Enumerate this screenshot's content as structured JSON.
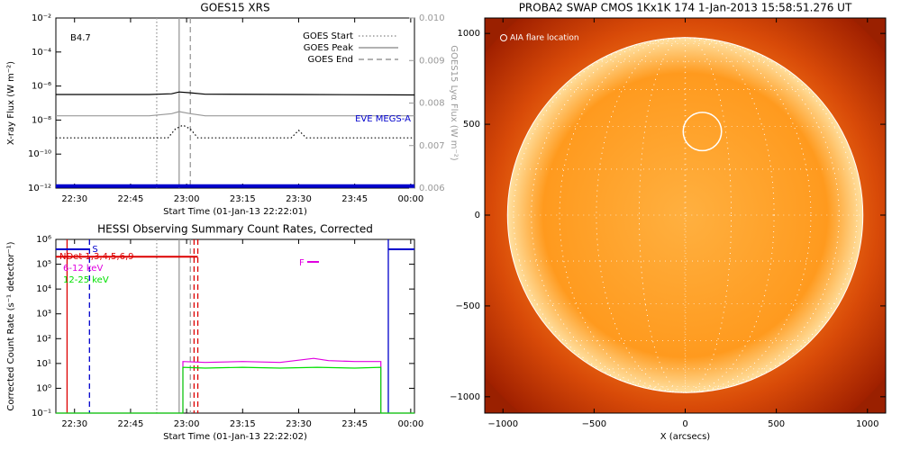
{
  "chart_data": [
    {
      "type": "line",
      "title": "GOES15 XRS",
      "xlabel": "Start Time (01-Jan-13 22:22:01)",
      "ylabel": "X-ray Flux (W m⁻²)",
      "y2label": "GOES15 Lyα Flux (W m⁻²)",
      "ylog": true,
      "xlim": [
        "22:25",
        "00:01"
      ],
      "ylim": [
        1e-12,
        0.01
      ],
      "y2lim": [
        0.006,
        0.01
      ],
      "xticks": [
        "22:30",
        "22:45",
        "23:00",
        "23:15",
        "23:30",
        "23:45",
        "00:00"
      ],
      "yticks": [
        {
          "value": 1e-12,
          "label": "10⁻¹²"
        },
        {
          "value": 1e-10,
          "label": "10⁻¹⁰"
        },
        {
          "value": 1e-08,
          "label": "10⁻⁸"
        },
        {
          "value": 1e-06,
          "label": "10⁻⁶"
        },
        {
          "value": 0.0001,
          "label": "10⁻⁴"
        },
        {
          "value": 0.01,
          "label": "10⁻²"
        }
      ],
      "y2ticks": [
        {
          "value": 0.006,
          "label": "0.006"
        },
        {
          "value": 0.007,
          "label": "0.007"
        },
        {
          "value": 0.008,
          "label": "0.008"
        },
        {
          "value": 0.009,
          "label": "0.009"
        },
        {
          "value": 0.01,
          "label": "0.010"
        }
      ],
      "annotations": [
        "B4.7"
      ],
      "series": [
        {
          "color": "#000000",
          "x": [
            "22:25",
            "22:50",
            "22:56",
            "22:58",
            "23:01",
            "23:05",
            "23:30",
            "00:01"
          ],
          "values": [
            3.2e-07,
            3.2e-07,
            3.5e-07,
            4.5e-07,
            4e-07,
            3.3e-07,
            3.2e-07,
            3e-07
          ]
        },
        {
          "color": "#999999",
          "axis": "y2",
          "x": [
            "22:25",
            "22:50",
            "22:56",
            "22:58",
            "23:01",
            "23:05",
            "23:30",
            "00:01"
          ],
          "values": [
            0.0077,
            0.0077,
            0.00775,
            0.0078,
            0.00775,
            0.0077,
            0.0077,
            0.0077
          ]
        },
        {
          "color": "#000000",
          "style": "dotted",
          "x": [
            "22:25",
            "22:55",
            "22:57",
            "22:59",
            "23:01",
            "23:03",
            "23:28",
            "23:30",
            "23:32",
            "00:01"
          ],
          "values": [
            9e-10,
            9e-10,
            3e-09,
            5e-09,
            3e-09,
            9e-10,
            9e-10,
            2.5e-09,
            9e-10,
            9e-10
          ]
        },
        {
          "name": "EVE MEGS-A",
          "color": "#0000cc",
          "width": 4,
          "x": [
            "22:25",
            "00:01"
          ],
          "values": [
            1.3e-12,
            1.3e-12
          ]
        }
      ],
      "vlines": [
        {
          "name": "GOES Start",
          "x": "22:52",
          "style": "dotted",
          "color": "#999999"
        },
        {
          "name": "GOES Peak",
          "x": "22:58",
          "style": "solid",
          "color": "#999999"
        },
        {
          "name": "GOES End",
          "x": "23:01",
          "style": "dashed",
          "color": "#999999"
        }
      ]
    },
    {
      "type": "line",
      "title": "HESSI Observing Summary Count Rates, Corrected",
      "xlabel": "Start Time (01-Jan-13 22:22:02)",
      "ylabel": "Corrected Count Rate (s⁻¹ detector⁻¹)",
      "ylog": true,
      "xlim": [
        "22:25",
        "00:01"
      ],
      "ylim": [
        0.1,
        1000000
      ],
      "xticks": [
        "22:30",
        "22:45",
        "23:00",
        "23:15",
        "23:30",
        "23:45",
        "00:00"
      ],
      "yticks": [
        {
          "value": 0.1,
          "label": "10⁻¹"
        },
        {
          "value": 1,
          "label": "10⁰"
        },
        {
          "value": 10,
          "label": "10¹"
        },
        {
          "value": 100,
          "label": "10²"
        },
        {
          "value": 1000,
          "label": "10³"
        },
        {
          "value": 10000,
          "label": "10⁴"
        },
        {
          "value": 100000,
          "label": "10⁵"
        },
        {
          "value": 1000000,
          "label": "10⁶"
        }
      ],
      "annotations": [
        "S",
        "F"
      ],
      "series": [
        {
          "name": "NDet 1,3,4,5,6,9",
          "color": "#dd0000",
          "width": 2,
          "x": [
            "22:25",
            "23:03"
          ],
          "values": [
            200000,
            200000
          ]
        },
        {
          "name": "6-12 keV",
          "color": "#e000e0",
          "x": [
            "22:25",
            "22:59",
            "22:59",
            "23:05",
            "23:15",
            "23:25",
            "23:34",
            "23:38",
            "23:45",
            "23:52",
            "23:52",
            "00:01"
          ],
          "values": [
            0.1,
            0.1,
            12,
            11,
            12,
            11,
            16,
            13,
            12,
            12,
            0.1,
            0.1
          ]
        },
        {
          "name": "12-25 keV",
          "color": "#00e000",
          "x": [
            "22:25",
            "22:59",
            "22:59",
            "23:05",
            "23:15",
            "23:25",
            "23:35",
            "23:45",
            "23:52",
            "23:52",
            "00:01"
          ],
          "values": [
            0.1,
            0.1,
            7,
            6.5,
            7,
            6.5,
            7,
            6.5,
            7,
            0.1,
            0.1
          ]
        },
        {
          "color": "#0000cc",
          "width": 2,
          "x": [
            "22:25",
            "22:34"
          ],
          "values": [
            400000,
            400000
          ]
        },
        {
          "color": "#0000cc",
          "width": 2,
          "x": [
            "23:54",
            "00:01"
          ],
          "values": [
            400000,
            400000
          ]
        }
      ],
      "vlines": [
        {
          "x": "22:28",
          "style": "solid",
          "color": "#dd0000"
        },
        {
          "x": "22:34",
          "style": "dashed",
          "color": "#0000cc"
        },
        {
          "x": "22:52",
          "style": "dotted",
          "color": "#999999"
        },
        {
          "x": "22:58",
          "style": "solid",
          "color": "#999999"
        },
        {
          "x": "23:01",
          "style": "dashed",
          "color": "#999999"
        },
        {
          "x": "23:02",
          "style": "dashed",
          "color": "#dd0000"
        },
        {
          "x": "23:03",
          "style": "dashed",
          "color": "#dd0000"
        },
        {
          "x": "23:54",
          "style": "solid",
          "color": "#0000cc"
        }
      ]
    },
    {
      "type": "image",
      "title": "PROBA2 SWAP CMOS 1Kx1K 174  1-Jan-2013 15:58:51.276 UT",
      "xlabel": "X (arcsecs)",
      "xlim": [
        -1100,
        1100
      ],
      "ylim": [
        -1090,
        1085
      ],
      "xticks": [
        {
          "value": -1000,
          "label": "−1000"
        },
        {
          "value": -500,
          "label": "−500"
        },
        0,
        500,
        1000
      ],
      "yticks": [
        {
          "value": -1000,
          "label": "−1000"
        },
        {
          "value": -500,
          "label": "−500"
        },
        0,
        500,
        1000
      ],
      "annotations": [
        "AIA flare location"
      ],
      "limb_radius": 975,
      "flare": {
        "x": 94,
        "y": 460,
        "radius": 105
      }
    }
  ]
}
